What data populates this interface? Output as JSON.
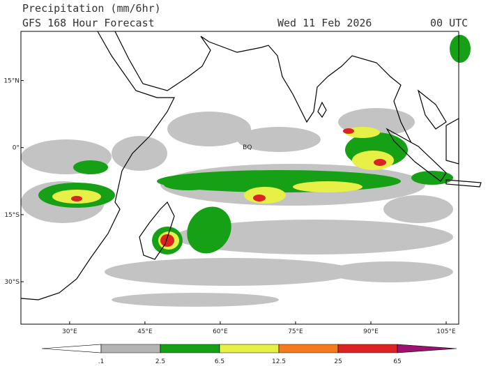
{
  "header": {
    "title": "Precipitation (mm/6hr)",
    "subtitle": "GFS 168 Hour Forecast",
    "date": "Wed 11 Feb 2026",
    "time": "00 UTC"
  },
  "map": {
    "lon_range": [
      20.3,
      107.5
    ],
    "lat_range": [
      26,
      -39.5
    ],
    "lon_ticks": [
      {
        "value": 30,
        "label": "30°E"
      },
      {
        "value": 45,
        "label": "45°E"
      },
      {
        "value": 60,
        "label": "60°E"
      },
      {
        "value": 75,
        "label": "75°E"
      },
      {
        "value": 90,
        "label": "90°E"
      },
      {
        "value": 105,
        "label": "105°E"
      }
    ],
    "lat_ticks": [
      {
        "value": 15,
        "label": "15°N"
      },
      {
        "value": 0,
        "label": "0°"
      },
      {
        "value": -15,
        "label": "15°S"
      },
      {
        "value": -30,
        "label": "30°S"
      }
    ],
    "places": [
      {
        "name": "BQ",
        "lon": 65.4,
        "lat": 0.1
      }
    ]
  },
  "colorbar": {
    "colors": [
      "#ffffff",
      "#b4b4b4",
      "#16a016",
      "#e6f046",
      "#f57a1e",
      "#dc2323",
      "#a0106e"
    ],
    "labels": [
      ".1",
      "2.5",
      "6.5",
      "12.5",
      "25",
      "65"
    ]
  }
}
